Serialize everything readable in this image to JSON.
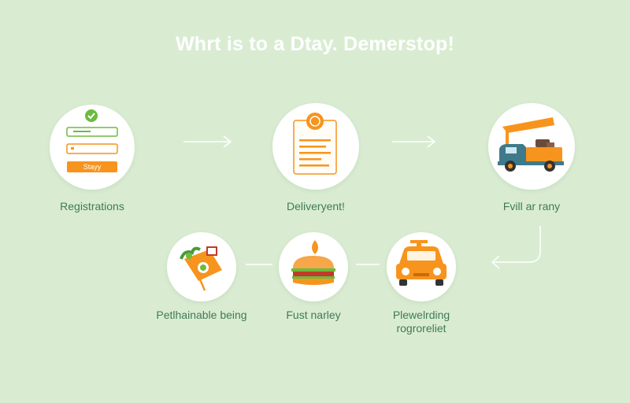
{
  "title": "Whrt is to a Dtay. Demerstop!",
  "colors": {
    "background": "#d9ecd2",
    "accent": "#f7941d",
    "text": "#3f7a58",
    "green": "#6dbb3f"
  },
  "steps": [
    {
      "id": "registrations",
      "label": "Registrations",
      "icon": "registration-form-icon",
      "button_text": "Stayy"
    },
    {
      "id": "delivery",
      "label": "Deliveryent!",
      "icon": "document-icon"
    },
    {
      "id": "fill",
      "label": "Fvill ar rany",
      "icon": "delivery-truck-icon"
    },
    {
      "id": "pickup",
      "label": "Plewelrding rogroreliet",
      "icon": "taxi-car-icon"
    },
    {
      "id": "fast",
      "label": "Fust narley",
      "icon": "burger-icon"
    },
    {
      "id": "perishable",
      "label": "Petlhainable being",
      "icon": "grocery-bag-icon"
    }
  ]
}
